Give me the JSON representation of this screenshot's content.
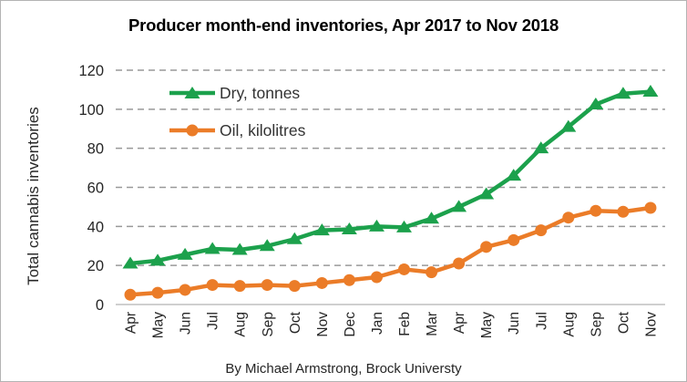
{
  "chart": {
    "title": "Producer month-end inventories, Apr 2017 to Nov 2018",
    "y_axis_label": "Total cannabis inventories",
    "footer": "By Michael Armstrong, Brock Universty",
    "legend": {
      "dry": "Dry, tonnes",
      "oil": "Oil, kilolitres"
    },
    "colors": {
      "dry_green": "#1CA14C",
      "oil_orange": "#EB7C28",
      "gridline_gray": "#999999",
      "axis_gray": "#BFBFBF",
      "text_dark": "#262626"
    }
  },
  "chart_data": {
    "type": "line",
    "title": "Producer month-end inventories, Apr 2017 to Nov 2018",
    "xlabel": "",
    "ylabel": "Total cannabis inventories",
    "ylim": [
      0,
      120
    ],
    "yticks": [
      0,
      20,
      40,
      60,
      80,
      100,
      120
    ],
    "grid": "horizontal dashed",
    "legend_position": "inside top-left",
    "categories": [
      "Apr",
      "May",
      "Jun",
      "Jul",
      "Aug",
      "Sep",
      "Oct",
      "Nov",
      "Dec",
      "Jan",
      "Feb",
      "Mar",
      "Apr",
      "May",
      "Jun",
      "Jul",
      "Aug",
      "Sep",
      "Oct",
      "Nov"
    ],
    "series": [
      {
        "name": "Dry, tonnes",
        "marker": "triangle",
        "color": "#1CA14C",
        "values": [
          21,
          22.5,
          25.5,
          28.5,
          28,
          30,
          33.5,
          38,
          38.5,
          40,
          39.5,
          44,
          50,
          56.5,
          66,
          80,
          91,
          102.5,
          108,
          109
        ]
      },
      {
        "name": "Oil, kilolitres",
        "marker": "circle",
        "color": "#EB7C28",
        "values": [
          5,
          6,
          7.5,
          10,
          9.5,
          10,
          9.5,
          11,
          12.5,
          14,
          18,
          16.5,
          21,
          29.5,
          33,
          38,
          44.5,
          48,
          47.5,
          49.5
        ]
      }
    ]
  }
}
